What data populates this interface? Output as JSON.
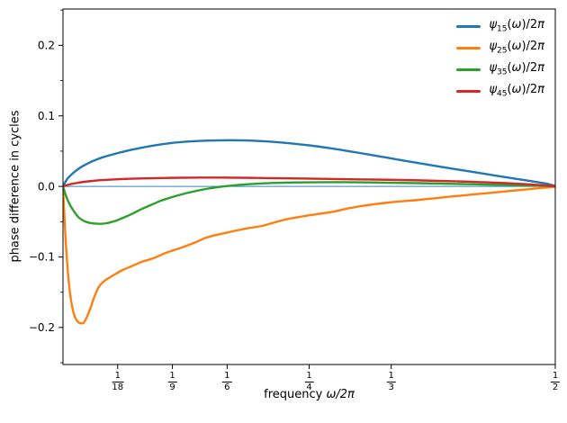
{
  "chart_data": {
    "type": "line",
    "xlabel_prefix": "frequency ",
    "xlabel_math": "ω/2π",
    "ylabel": "phase difference in cycles",
    "xlim": [
      0,
      0.5
    ],
    "ylim": [
      -0.2525,
      0.2515
    ],
    "grid": false,
    "legend_position": "upper right",
    "zero_line": {
      "value": 0,
      "color": "#1f77b4",
      "width": 1
    },
    "frame_color": "#000000",
    "x_ticks": [
      {
        "value": 0.055556,
        "num": "1",
        "den": "18"
      },
      {
        "value": 0.111111,
        "num": "1",
        "den": "9"
      },
      {
        "value": 0.166667,
        "num": "1",
        "den": "6"
      },
      {
        "value": 0.25,
        "num": "1",
        "den": "4"
      },
      {
        "value": 0.333333,
        "num": "1",
        "den": "3"
      },
      {
        "value": 0.5,
        "num": "1",
        "den": "2"
      }
    ],
    "y_ticks_major": [
      {
        "value": 0.2,
        "label": "0.2"
      },
      {
        "value": 0.1,
        "label": "0.1"
      },
      {
        "value": 0.0,
        "label": "0.0"
      },
      {
        "value": -0.1,
        "label": "−0.1"
      },
      {
        "value": -0.2,
        "label": "−0.2"
      }
    ],
    "y_ticks_minor": [
      0.25,
      0.15,
      0.05,
      -0.05,
      -0.15,
      -0.25
    ],
    "series": [
      {
        "id": "psi15",
        "sym": "ψ",
        "sub": "15",
        "arg": "(ω)/2π",
        "color": "#1f77b4",
        "points": [
          [
            0,
            0
          ],
          [
            0.004,
            0.01
          ],
          [
            0.008,
            0.016
          ],
          [
            0.012,
            0.021
          ],
          [
            0.018,
            0.027
          ],
          [
            0.025,
            0.0325
          ],
          [
            0.033,
            0.0375
          ],
          [
            0.042,
            0.042
          ],
          [
            0.055,
            0.047
          ],
          [
            0.07,
            0.052
          ],
          [
            0.09,
            0.0575
          ],
          [
            0.11,
            0.0615
          ],
          [
            0.13,
            0.0638
          ],
          [
            0.15,
            0.065
          ],
          [
            0.17,
            0.0654
          ],
          [
            0.19,
            0.065
          ],
          [
            0.21,
            0.0636
          ],
          [
            0.23,
            0.0612
          ],
          [
            0.25,
            0.0582
          ],
          [
            0.27,
            0.0544
          ],
          [
            0.29,
            0.05
          ],
          [
            0.31,
            0.0453
          ],
          [
            0.33,
            0.0405
          ],
          [
            0.35,
            0.0357
          ],
          [
            0.37,
            0.031
          ],
          [
            0.39,
            0.0264
          ],
          [
            0.41,
            0.0219
          ],
          [
            0.43,
            0.0174
          ],
          [
            0.45,
            0.013
          ],
          [
            0.47,
            0.0086
          ],
          [
            0.49,
            0.0042
          ],
          [
            0.5,
            0.0005
          ]
        ]
      },
      {
        "id": "psi25",
        "sym": "ψ",
        "sub": "25",
        "arg": "(ω)/2π",
        "color": "#ff7f0e",
        "points": [
          [
            0,
            0
          ],
          [
            0.001,
            -0.03
          ],
          [
            0.002,
            -0.058
          ],
          [
            0.003,
            -0.083
          ],
          [
            0.004,
            -0.104
          ],
          [
            0.005,
            -0.122
          ],
          [
            0.006,
            -0.137
          ],
          [
            0.008,
            -0.16
          ],
          [
            0.01,
            -0.175
          ],
          [
            0.012,
            -0.185
          ],
          [
            0.014,
            -0.19
          ],
          [
            0.016,
            -0.193
          ],
          [
            0.018,
            -0.194
          ],
          [
            0.021,
            -0.1935
          ],
          [
            0.024,
            -0.186
          ],
          [
            0.028,
            -0.172
          ],
          [
            0.032,
            -0.156
          ],
          [
            0.0366,
            -0.142
          ],
          [
            0.042,
            -0.134
          ],
          [
            0.05,
            -0.127
          ],
          [
            0.06,
            -0.119
          ],
          [
            0.07,
            -0.113
          ],
          [
            0.08,
            -0.107
          ],
          [
            0.0915,
            -0.102
          ],
          [
            0.105,
            -0.094
          ],
          [
            0.12,
            -0.087
          ],
          [
            0.135,
            -0.079
          ],
          [
            0.147,
            -0.072
          ],
          [
            0.165,
            -0.066
          ],
          [
            0.185,
            -0.06
          ],
          [
            0.202,
            -0.056
          ],
          [
            0.215,
            -0.051
          ],
          [
            0.229,
            -0.046
          ],
          [
            0.25,
            -0.041
          ],
          [
            0.274,
            -0.036
          ],
          [
            0.29,
            -0.031
          ],
          [
            0.307,
            -0.027
          ],
          [
            0.33,
            -0.023
          ],
          [
            0.362,
            -0.019
          ],
          [
            0.39,
            -0.015
          ],
          [
            0.42,
            -0.011
          ],
          [
            0.45,
            -0.007
          ],
          [
            0.48,
            -0.003
          ],
          [
            0.5,
            -0.0005
          ]
        ]
      },
      {
        "id": "psi35",
        "sym": "ψ",
        "sub": "35",
        "arg": "(ω)/2π",
        "color": "#2ca02c",
        "points": [
          [
            0,
            0
          ],
          [
            0.002,
            -0.009
          ],
          [
            0.004,
            -0.017
          ],
          [
            0.007,
            -0.026
          ],
          [
            0.01,
            -0.033
          ],
          [
            0.013,
            -0.039
          ],
          [
            0.016,
            -0.044
          ],
          [
            0.02,
            -0.048
          ],
          [
            0.024,
            -0.0505
          ],
          [
            0.028,
            -0.052
          ],
          [
            0.033,
            -0.0528
          ],
          [
            0.038,
            -0.053
          ],
          [
            0.043,
            -0.0525
          ],
          [
            0.048,
            -0.051
          ],
          [
            0.055,
            -0.048
          ],
          [
            0.062,
            -0.044
          ],
          [
            0.07,
            -0.039
          ],
          [
            0.08,
            -0.032
          ],
          [
            0.0915,
            -0.025
          ],
          [
            0.1,
            -0.02
          ],
          [
            0.11,
            -0.0155
          ],
          [
            0.12,
            -0.0115
          ],
          [
            0.13,
            -0.008
          ],
          [
            0.14,
            -0.005
          ],
          [
            0.15,
            -0.0025
          ],
          [
            0.16,
            -0.0005
          ],
          [
            0.17,
            0.001
          ],
          [
            0.19,
            0.0033
          ],
          [
            0.21,
            0.0047
          ],
          [
            0.24,
            0.0057
          ],
          [
            0.27,
            0.006
          ],
          [
            0.3,
            0.0058
          ],
          [
            0.33,
            0.0052
          ],
          [
            0.36,
            0.0046
          ],
          [
            0.39,
            0.0038
          ],
          [
            0.42,
            0.0029
          ],
          [
            0.45,
            0.002
          ],
          [
            0.48,
            0.001
          ],
          [
            0.5,
            0.0002
          ]
        ]
      },
      {
        "id": "psi45",
        "sym": "ψ",
        "sub": "45",
        "arg": "(ω)/2π",
        "color": "#d62728",
        "points": [
          [
            0,
            0
          ],
          [
            0.004,
            0.0018
          ],
          [
            0.008,
            0.0032
          ],
          [
            0.013,
            0.0046
          ],
          [
            0.02,
            0.0062
          ],
          [
            0.03,
            0.0078
          ],
          [
            0.04,
            0.009
          ],
          [
            0.055,
            0.0101
          ],
          [
            0.07,
            0.0109
          ],
          [
            0.09,
            0.0116
          ],
          [
            0.11,
            0.0121
          ],
          [
            0.13,
            0.0124
          ],
          [
            0.15,
            0.0125
          ],
          [
            0.17,
            0.0124
          ],
          [
            0.19,
            0.0121
          ],
          [
            0.21,
            0.0117
          ],
          [
            0.24,
            0.0112
          ],
          [
            0.27,
            0.0106
          ],
          [
            0.3,
            0.01
          ],
          [
            0.33,
            0.0094
          ],
          [
            0.36,
            0.0086
          ],
          [
            0.39,
            0.0076
          ],
          [
            0.42,
            0.0063
          ],
          [
            0.45,
            0.0047
          ],
          [
            0.475,
            0.0028
          ],
          [
            0.49,
            0.0014
          ],
          [
            0.5,
            0.0003
          ]
        ]
      }
    ]
  }
}
